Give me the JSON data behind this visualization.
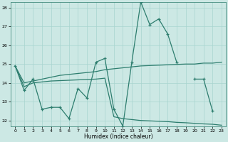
{
  "xlabel": "Humidex (Indice chaleur)",
  "x": [
    0,
    1,
    2,
    3,
    4,
    5,
    6,
    7,
    8,
    9,
    10,
    11,
    12,
    13,
    14,
    15,
    16,
    17,
    18,
    19,
    20,
    21,
    22,
    23
  ],
  "line_jagged": [
    24.9,
    23.6,
    24.2,
    22.6,
    22.7,
    22.7,
    22.1,
    23.7,
    23.2,
    25.1,
    25.3,
    22.6,
    21.7,
    25.1,
    28.3,
    27.1,
    27.4,
    26.6,
    25.1,
    null,
    24.2,
    24.2,
    22.5,
    null
  ],
  "line_upper": [
    24.9,
    24.0,
    24.1,
    24.2,
    24.3,
    24.4,
    24.45,
    24.5,
    24.55,
    24.6,
    24.7,
    24.75,
    24.8,
    24.85,
    24.9,
    24.92,
    24.94,
    24.96,
    24.98,
    25.0,
    25.0,
    25.05,
    25.05,
    25.1
  ],
  "line_lower": [
    24.9,
    23.8,
    24.0,
    24.05,
    24.1,
    24.12,
    24.14,
    24.16,
    24.18,
    24.2,
    24.25,
    22.2,
    22.1,
    22.05,
    22.0,
    21.98,
    21.96,
    21.94,
    21.9,
    21.88,
    21.85,
    21.82,
    21.8,
    21.75
  ],
  "line_color": "#2d7d6e",
  "bg_color": "#cce8e4",
  "grid_color": "#a8d4cf",
  "ylim": [
    21.7,
    28.3
  ],
  "xlim": [
    -0.5,
    23.5
  ],
  "yticks": [
    22,
    23,
    24,
    25,
    26,
    27,
    28
  ],
  "xticks": [
    0,
    1,
    2,
    3,
    4,
    5,
    6,
    7,
    8,
    9,
    10,
    11,
    12,
    13,
    14,
    15,
    16,
    17,
    18,
    19,
    20,
    21,
    22,
    23
  ]
}
